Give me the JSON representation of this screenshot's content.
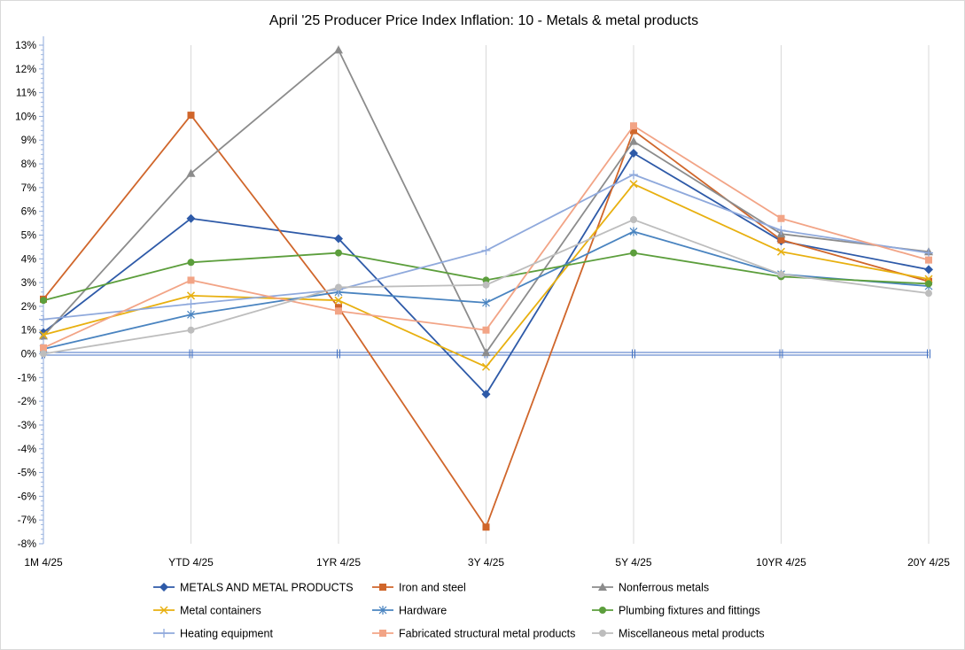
{
  "chart_data": {
    "type": "line",
    "title": "April '25 Producer Price Index Inflation: 10 - Metals & metal products",
    "xlabel": "",
    "ylabel": "",
    "categories": [
      "1M 4/25",
      "YTD  4/25",
      "1YR 4/25",
      "3Y 4/25",
      "5Y 4/25",
      "10YR  4/25",
      "20Y 4/25"
    ],
    "ylim": [
      -8,
      13
    ],
    "yticks": [
      13,
      12,
      11,
      10,
      9,
      8,
      7,
      6,
      5,
      4,
      3,
      2,
      1,
      0,
      -1,
      -2,
      -3,
      -4,
      -5,
      -6,
      -7,
      -8
    ],
    "ytick_labels": [
      "13%",
      "12%",
      "11%",
      "10%",
      "9%",
      "8%",
      "7%",
      "6%",
      "5%",
      "4%",
      "3%",
      "2%",
      "1%",
      "0%",
      "-1%",
      "-2%",
      "-3%",
      "-4%",
      "-5%",
      "-6%",
      "-7%",
      "-8%"
    ],
    "grid": "vertical",
    "legend_position": "bottom",
    "series": [
      {
        "name": "METALS AND METAL PRODUCTS",
        "color": "#2e5aa8",
        "marker": "diamond",
        "values": [
          0.9,
          5.7,
          4.85,
          -1.7,
          8.45,
          4.75,
          3.55
        ]
      },
      {
        "name": "Iron and steel",
        "color": "#d0662b",
        "marker": "square",
        "values": [
          2.3,
          10.05,
          1.95,
          -7.3,
          9.4,
          4.8,
          3.05
        ]
      },
      {
        "name": "Nonferrous metals",
        "color": "#8c8c8c",
        "marker": "triangle",
        "values": [
          0.75,
          7.6,
          12.8,
          0.05,
          8.95,
          5.05,
          4.3
        ]
      },
      {
        "name": "Metal containers",
        "color": "#e8b010",
        "marker": "x",
        "values": [
          0.8,
          2.45,
          2.25,
          -0.55,
          7.15,
          4.3,
          3.15
        ]
      },
      {
        "name": "Hardware",
        "color": "#4a84c0",
        "marker": "star",
        "values": [
          0.2,
          1.65,
          2.6,
          2.15,
          5.15,
          3.35,
          2.85
        ]
      },
      {
        "name": "Plumbing fixtures and fittings",
        "color": "#5c9e3c",
        "marker": "circle",
        "values": [
          2.25,
          3.85,
          4.25,
          3.1,
          4.25,
          3.25,
          2.95
        ]
      },
      {
        "name": "Heating equipment",
        "color": "#8fa9dc",
        "marker": "plus",
        "values": [
          1.45,
          2.1,
          2.7,
          4.35,
          7.55,
          5.2,
          4.25
        ]
      },
      {
        "name": "Fabricated structural metal products",
        "color": "#f2a486",
        "marker": "square",
        "values": [
          0.25,
          3.1,
          1.8,
          1.0,
          9.6,
          5.7,
          3.95
        ]
      },
      {
        "name": "Miscellaneous metal products",
        "color": "#bdbdbd",
        "marker": "circle",
        "values": [
          0.0,
          1.0,
          2.8,
          2.9,
          5.65,
          3.35,
          2.55
        ]
      }
    ]
  }
}
